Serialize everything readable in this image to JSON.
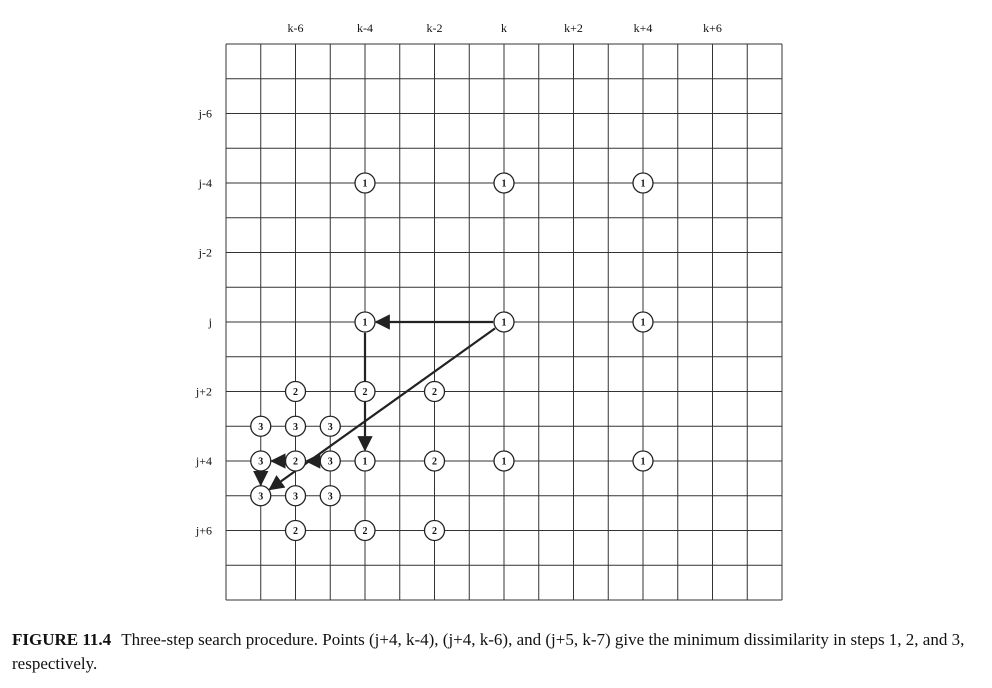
{
  "diagram": {
    "title": "",
    "column_labels": [
      {
        "label": "k-6",
        "col": 2
      },
      {
        "label": "k-4",
        "col": 4
      },
      {
        "label": "k-2",
        "col": 6
      },
      {
        "label": "k",
        "col": 8
      },
      {
        "label": "k+2",
        "col": 10
      },
      {
        "label": "k+4",
        "col": 12
      },
      {
        "label": "k+6",
        "col": 14
      }
    ],
    "row_labels": [
      {
        "label": "j-6",
        "row": 2
      },
      {
        "label": "j-4",
        "row": 4
      },
      {
        "label": "j-2",
        "row": 6
      },
      {
        "label": "j",
        "row": 8
      },
      {
        "label": "j+2",
        "row": 10
      },
      {
        "label": "j+4",
        "row": 12
      },
      {
        "label": "j+6",
        "row": 14
      }
    ],
    "search_points": [
      {
        "step": "1",
        "row": 4,
        "col": 4
      },
      {
        "step": "1",
        "row": 4,
        "col": 8
      },
      {
        "step": "1",
        "row": 4,
        "col": 12
      },
      {
        "step": "1",
        "row": 8,
        "col": 4
      },
      {
        "step": "1",
        "row": 8,
        "col": 8
      },
      {
        "step": "1",
        "row": 8,
        "col": 12
      },
      {
        "step": "1",
        "row": 12,
        "col": 4
      },
      {
        "step": "1",
        "row": 12,
        "col": 8
      },
      {
        "step": "1",
        "row": 12,
        "col": 12
      },
      {
        "step": "2",
        "row": 10,
        "col": 2
      },
      {
        "step": "2",
        "row": 10,
        "col": 4
      },
      {
        "step": "2",
        "row": 10,
        "col": 6
      },
      {
        "step": "2",
        "row": 12,
        "col": 2
      },
      {
        "step": "2",
        "row": 12,
        "col": 6
      },
      {
        "step": "2",
        "row": 14,
        "col": 2
      },
      {
        "step": "2",
        "row": 14,
        "col": 4
      },
      {
        "step": "2",
        "row": 14,
        "col": 6
      },
      {
        "step": "3",
        "row": 11,
        "col": 1
      },
      {
        "step": "3",
        "row": 11,
        "col": 2
      },
      {
        "step": "3",
        "row": 11,
        "col": 3
      },
      {
        "step": "3",
        "row": 12,
        "col": 1
      },
      {
        "step": "3",
        "row": 12,
        "col": 3
      },
      {
        "step": "3",
        "row": 13,
        "col": 1
      },
      {
        "step": "3",
        "row": 13,
        "col": 2
      },
      {
        "step": "3",
        "row": 13,
        "col": 3
      }
    ],
    "arrows": [
      {
        "from": {
          "row": 8,
          "col": 8
        },
        "to": {
          "row": 8,
          "col": 4
        }
      },
      {
        "from": {
          "row": 8,
          "col": 4
        },
        "to": {
          "row": 12,
          "col": 4
        }
      },
      {
        "from": {
          "row": 8,
          "col": 8
        },
        "to": {
          "row": 13,
          "col": 1
        }
      },
      {
        "from": {
          "row": 12,
          "col": 3
        },
        "to": {
          "row": 12,
          "col": 2
        }
      },
      {
        "from": {
          "row": 12,
          "col": 1
        },
        "to": {
          "row": 13,
          "col": 1
        }
      },
      {
        "from": {
          "row": 12,
          "col": 2
        },
        "to": {
          "row": 12,
          "col": 1
        }
      }
    ]
  },
  "caption": {
    "figure_number": "FIGURE 11.4",
    "text": "Three-step search procedure. Points (j+4, k-4), (j+4, k-6), and (j+5, k-7) give the minimum dissimilarity in steps 1, 2, and 3, respectively."
  }
}
